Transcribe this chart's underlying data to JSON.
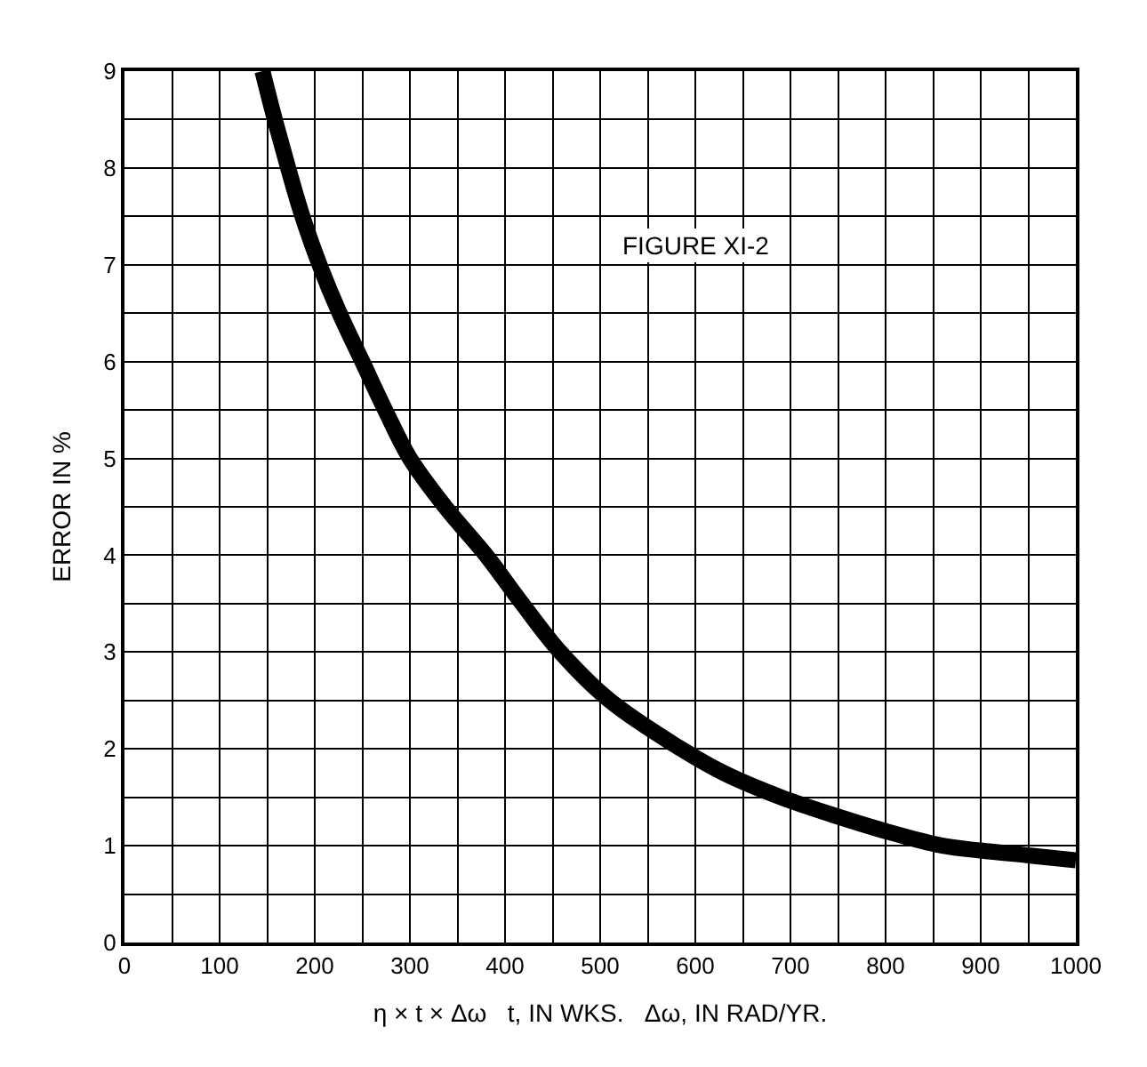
{
  "chart_data": {
    "type": "line",
    "xlabel": "η × t × Δω   t, IN WKS.   Δω, IN RAD/YR.",
    "ylabel": "ERROR IN %",
    "annotations": [
      "FIGURE XI-2"
    ],
    "x": [
      145,
      158,
      172,
      187,
      205,
      226,
      250,
      274,
      300,
      337,
      380,
      418,
      458,
      510,
      585,
      630,
      690,
      750,
      800,
      860,
      900,
      950,
      1000
    ],
    "series": [
      {
        "color": "#000000",
        "values": [
          9,
          8.5,
          8,
          7.5,
          7,
          6.5,
          6,
          5.5,
          5,
          4.5,
          4,
          3.5,
          3,
          2.5,
          2,
          1.75,
          1.5,
          1.3,
          1.15,
          1,
          0.95,
          0.9,
          0.85
        ]
      }
    ],
    "xlim": [
      0,
      1000
    ],
    "xticks": [
      0,
      100,
      200,
      300,
      400,
      500,
      600,
      700,
      800,
      900,
      1000
    ],
    "ylim": [
      0,
      9
    ],
    "yticks": [
      0,
      1,
      2,
      3,
      4,
      5,
      6,
      7,
      8,
      9
    ],
    "grid": true,
    "legend": false,
    "marker": "none",
    "line_style": "solid"
  }
}
